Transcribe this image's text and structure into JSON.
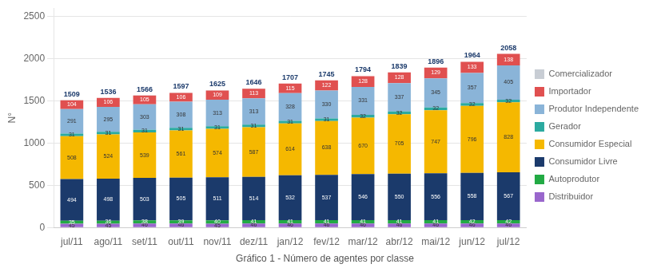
{
  "chart_data": {
    "type": "bar",
    "stacked": true,
    "title": "Gráfico 1 - Número de agentes por classe",
    "ylabel": "N°",
    "categories": [
      "jul/11",
      "ago/11",
      "set/11",
      "out/11",
      "nov/11",
      "dez/11",
      "jan/12",
      "fev/12",
      "mar/12",
      "abr/12",
      "mai/12",
      "jun/12",
      "jul/12"
    ],
    "series": [
      {
        "name": "Distribuidor",
        "color": "#9966cc",
        "values": [
          45,
          45,
          46,
          46,
          45,
          46,
          46,
          46,
          46,
          46,
          46,
          46,
          46
        ]
      },
      {
        "name": "Autoprodutor",
        "color": "#22aa44",
        "values": [
          35,
          36,
          38,
          39,
          40,
          41,
          41,
          41,
          41,
          41,
          41,
          42,
          42
        ]
      },
      {
        "name": "Consumidor Livre",
        "color": "#1b3a6b",
        "values": [
          494,
          498,
          503,
          505,
          511,
          514,
          532,
          537,
          546,
          550,
          556,
          558,
          567
        ]
      },
      {
        "name": "Consumidor Especial",
        "color": "#f5b800",
        "values": [
          508,
          524,
          539,
          561,
          574,
          587,
          614,
          638,
          670,
          705,
          747,
          796,
          828
        ]
      },
      {
        "name": "Gerador",
        "color": "#2baaa0",
        "values": [
          31,
          31,
          31,
          31,
          31,
          31,
          31,
          31,
          32,
          32,
          32,
          32,
          32
        ]
      },
      {
        "name": "Produtor Independente",
        "color": "#8ab4d8",
        "values": [
          291,
          295,
          303,
          308,
          313,
          313,
          328,
          330,
          331,
          337,
          345,
          357,
          405
        ]
      },
      {
        "name": "Importador",
        "color": "#e05050",
        "values": [
          104,
          106,
          105,
          106,
          109,
          113,
          115,
          122,
          128,
          128,
          129,
          133,
          138
        ]
      },
      {
        "name": "Comercializador",
        "color": "#c8cdd4",
        "values": [
          1,
          1,
          1,
          1,
          2,
          1,
          0,
          0,
          0,
          0,
          0,
          0,
          0
        ],
        "value_labels": [
          null,
          null,
          null,
          null,
          null,
          null,
          null,
          null,
          null,
          null,
          null,
          null,
          null
        ]
      }
    ],
    "totals": [
      1509,
      1536,
      1566,
      1597,
      1625,
      1646,
      1707,
      1745,
      1794,
      1839,
      1896,
      1964,
      2058
    ],
    "ylim": [
      0,
      2600
    ],
    "yticks": [
      0,
      500,
      1000,
      1500,
      2000,
      2500
    ],
    "grid": true,
    "legend": "right",
    "data_labels": true
  }
}
